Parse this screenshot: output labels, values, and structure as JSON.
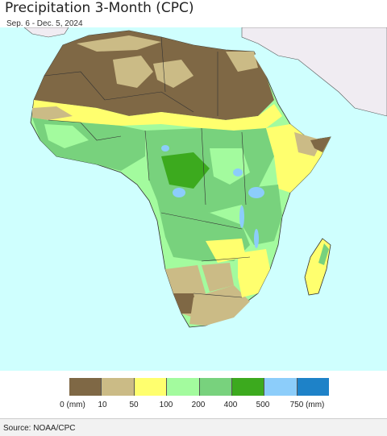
{
  "header": {
    "title": "Precipitation 3-Month (CPC)",
    "subtitle": "Sep. 6 - Dec. 5, 2024"
  },
  "legend": {
    "colors": [
      "#7f6845",
      "#cbbb86",
      "#ffff6e",
      "#a3fb9e",
      "#78d27d",
      "#3caa1e",
      "#8ccdfa",
      "#1e82c8"
    ],
    "ticks": [
      "0 (mm)",
      "10",
      "50",
      "100",
      "200",
      "400",
      "500",
      "750 (mm)"
    ]
  },
  "footer": {
    "source": "Source: NOAA/CPC"
  },
  "map": {
    "ocean_color": "#cffffe",
    "outside_land_color": "#f0ecf2"
  }
}
